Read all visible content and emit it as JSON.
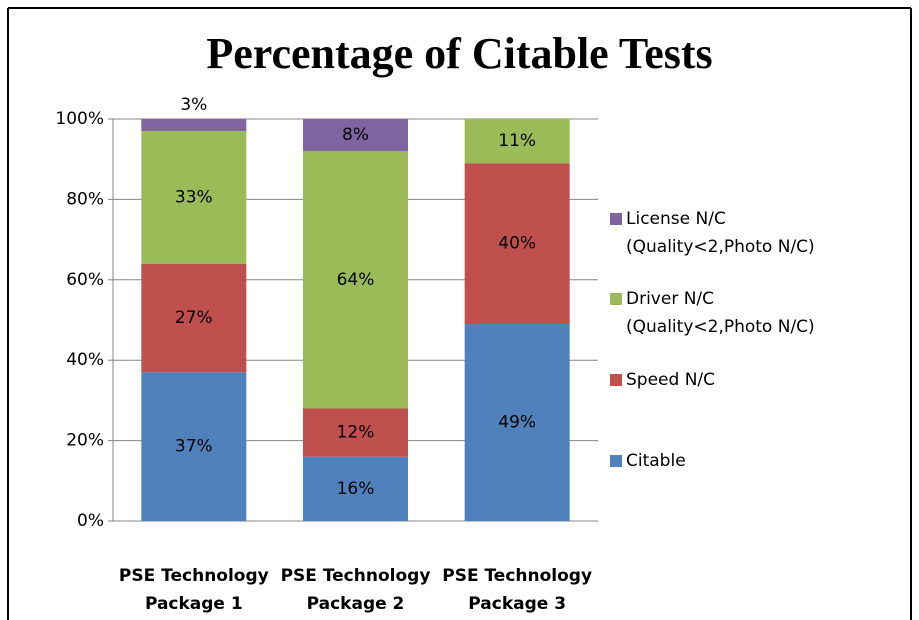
{
  "chart_data": {
    "type": "stacked_bar",
    "title": "Percentage of Citable Tests",
    "categories": [
      "PSE Technology\nPackage 1",
      "PSE Technology\nPackage 2",
      "PSE Technology\nPackage 3"
    ],
    "series": [
      {
        "name": "Citable",
        "color": "#4f81bd",
        "values": [
          37,
          16,
          49
        ],
        "value_labels": [
          "37%",
          "16%",
          "49%"
        ]
      },
      {
        "name": "Speed N/C",
        "color": "#c0504d",
        "values": [
          27,
          12,
          40
        ],
        "value_labels": [
          "27%",
          "12%",
          "40%"
        ]
      },
      {
        "name": "Driver N/C\n(Quality<2,Photo N/C)",
        "color": "#9bbb59",
        "values": [
          33,
          64,
          11
        ],
        "value_labels": [
          "33%",
          "64%",
          "11%"
        ]
      },
      {
        "name": "License N/C\n(Quality<2,Photo N/C)",
        "color": "#8064a2",
        "values": [
          3,
          8,
          null
        ],
        "value_labels": [
          "3%",
          "8%",
          null
        ]
      }
    ],
    "ylim": [
      0,
      100
    ],
    "yticks": [
      {
        "value": 0,
        "label": "0%"
      },
      {
        "value": 20,
        "label": "20%"
      },
      {
        "value": 40,
        "label": "40%"
      },
      {
        "value": 60,
        "label": "60%"
      },
      {
        "value": 80,
        "label": "80%"
      },
      {
        "value": 100,
        "label": "100%"
      }
    ],
    "grid": true,
    "legend": "right"
  }
}
